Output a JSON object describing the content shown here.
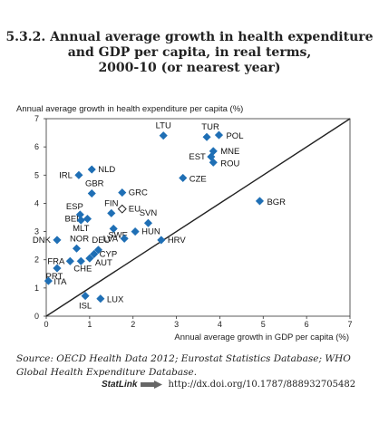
{
  "title_lines": [
    "5.3.2.  Annual average growth in health expenditure",
    "and GDP per capita, in real terms,",
    "2000-10 (or nearest year)"
  ],
  "source": "Source: OECD Health Data 2012; Eurostat Statistics Database; WHO Global Health Expenditure Database.",
  "statlink": {
    "label": "StatLink",
    "url": "http://dx.doi.org/10.1787/888932705482"
  },
  "chart_data": {
    "type": "scatter",
    "ylabel": "Annual average growth in health expenditure per capita (%)",
    "xlabel": "Annual average growth in GDP per capita (%)",
    "xlim": [
      0,
      7
    ],
    "ylim": [
      0,
      7
    ],
    "xticks": [
      "0",
      "1",
      "2",
      "3",
      "4",
      "5",
      "6",
      "7"
    ],
    "yticks": [
      "0",
      "1",
      "2",
      "3",
      "4",
      "5",
      "6",
      "7"
    ],
    "diagonal_line": true,
    "points": [
      {
        "label": "LTU",
        "x": 2.7,
        "y": 6.4
      },
      {
        "label": "TUR",
        "x": 3.7,
        "y": 6.35
      },
      {
        "label": "POL",
        "x": 3.98,
        "y": 6.42
      },
      {
        "label": "MNE",
        "x": 3.85,
        "y": 5.85
      },
      {
        "label": "EST",
        "x": 3.8,
        "y": 5.65
      },
      {
        "label": "ROU",
        "x": 3.85,
        "y": 5.45
      },
      {
        "label": "CZE",
        "x": 3.15,
        "y": 4.9
      },
      {
        "label": "BGR",
        "x": 4.92,
        "y": 4.08
      },
      {
        "label": "NLD",
        "x": 1.05,
        "y": 5.2
      },
      {
        "label": "IRL",
        "x": 0.75,
        "y": 5.0
      },
      {
        "label": "GBR",
        "x": 1.05,
        "y": 4.35
      },
      {
        "label": "GRC",
        "x": 1.75,
        "y": 4.38
      },
      {
        "label": "EU",
        "x": 1.75,
        "y": 3.8,
        "marker": "hollow-diamond"
      },
      {
        "label": "FIN",
        "x": 1.5,
        "y": 3.65
      },
      {
        "label": "ESP",
        "x": 0.78,
        "y": 3.6
      },
      {
        "label": "BEL",
        "x": 0.95,
        "y": 3.45
      },
      {
        "label": "SWE",
        "x": 1.55,
        "y": 3.1
      },
      {
        "label": "SVN",
        "x": 2.35,
        "y": 3.3
      },
      {
        "label": "MLT",
        "x": 0.8,
        "y": 3.4
      },
      {
        "label": "HUN",
        "x": 2.05,
        "y": 3.0
      },
      {
        "label": "DNK",
        "x": 0.25,
        "y": 2.7
      },
      {
        "label": "LVA",
        "x": 1.8,
        "y": 2.75
      },
      {
        "label": "HRV",
        "x": 2.65,
        "y": 2.7
      },
      {
        "label": "NOR",
        "x": 0.7,
        "y": 2.4
      },
      {
        "label": "DEU",
        "x": 1.2,
        "y": 2.35
      },
      {
        "label": "FRA",
        "x": 0.55,
        "y": 1.95
      },
      {
        "label": "CYP",
        "x": 1.1,
        "y": 2.2
      },
      {
        "label": "AUT",
        "x": 1.0,
        "y": 2.05
      },
      {
        "label": "CHE",
        "x": 0.8,
        "y": 1.95
      },
      {
        "label": "PRT",
        "x": 0.25,
        "y": 1.7
      },
      {
        "label": "ITA",
        "x": 0.05,
        "y": 1.25
      },
      {
        "label": "ISL",
        "x": 0.9,
        "y": 0.72
      },
      {
        "label": "LUX",
        "x": 1.25,
        "y": 0.62
      }
    ]
  }
}
